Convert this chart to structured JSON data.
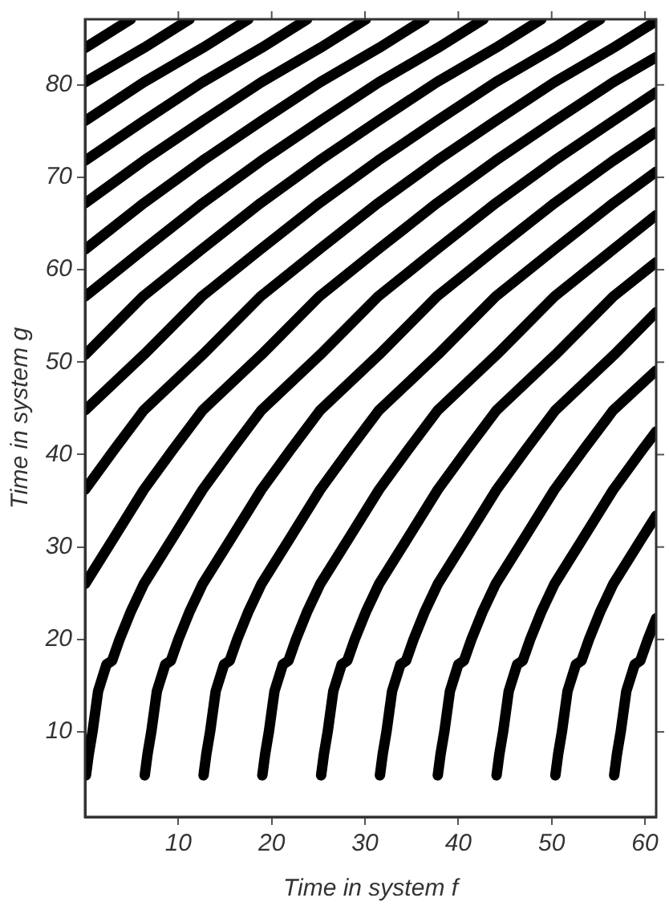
{
  "chart_data": {
    "type": "line",
    "xlabel": "Time in system f",
    "ylabel": "Time in system g",
    "xlim": [
      0,
      61.2
    ],
    "ylim": [
      0.8,
      87.1
    ],
    "xticks": [
      10,
      20,
      30,
      40,
      50,
      60
    ],
    "yticks": [
      10,
      20,
      30,
      40,
      50,
      60,
      70,
      80
    ],
    "grid": false,
    "legend": false,
    "marker": "none",
    "line_style": "solid",
    "series": [
      {
        "color": "#000000",
        "x": [
          0,
          4.9
        ],
        "values": [
          84,
          87.1
        ]
      },
      {
        "color": "#000000",
        "x": [
          0,
          6.3,
          11.2
        ],
        "values": [
          80.3,
          84,
          87.1
        ]
      },
      {
        "color": "#000000",
        "x": [
          0,
          6.3,
          12.6,
          17.5
        ],
        "values": [
          76.1,
          80.3,
          84,
          87.1
        ]
      },
      {
        "color": "#000000",
        "x": [
          0,
          6.3,
          12.6,
          18.9,
          23.8
        ],
        "values": [
          71.8,
          76.1,
          80.3,
          84,
          87.1
        ]
      },
      {
        "color": "#000000",
        "x": [
          0,
          6.3,
          12.6,
          18.9,
          25.2,
          30.1
        ],
        "values": [
          67.2,
          71.8,
          76.1,
          80.3,
          84,
          87.1
        ]
      },
      {
        "color": "#000000",
        "x": [
          0,
          6.3,
          12.6,
          18.9,
          25.2,
          31.5,
          36.4
        ],
        "values": [
          62.2,
          67.2,
          71.8,
          76.1,
          80.3,
          84,
          87.1
        ]
      },
      {
        "color": "#000000",
        "x": [
          0,
          6.3,
          12.6,
          18.9,
          25.2,
          31.5,
          37.8,
          42.7
        ],
        "values": [
          57.1,
          62.2,
          67.2,
          71.8,
          76.1,
          80.3,
          84,
          87.1
        ]
      },
      {
        "color": "#000000",
        "x": [
          0,
          6.2,
          12.5,
          18.8,
          25.1,
          31.4,
          37.7,
          44,
          48.9
        ],
        "values": [
          50.8,
          57.1,
          62.2,
          67.2,
          71.8,
          76.1,
          80.3,
          84,
          87.1
        ]
      },
      {
        "color": "#000000",
        "x": [
          0,
          6.3,
          12.5,
          18.8,
          25.1,
          31.4,
          37.7,
          44,
          50.3,
          55.2
        ],
        "values": [
          44.8,
          50.8,
          57.1,
          62.2,
          67.2,
          71.8,
          76.1,
          80.3,
          84,
          87.1
        ]
      },
      {
        "color": "#000000",
        "x": [
          0,
          3.1,
          6.3,
          12.6,
          18.8,
          25.1,
          31.4,
          37.7,
          44,
          50.3,
          56.6,
          61.2
        ],
        "values": [
          36.2,
          40.5,
          44.8,
          50.8,
          57.1,
          62.2,
          67.2,
          71.8,
          76.1,
          80.3,
          84,
          86.9
        ]
      },
      {
        "color": "#000000",
        "x": [
          0,
          3.1,
          6.3,
          9.4,
          12.6,
          18.9,
          25.1,
          31.4,
          37.7,
          44,
          50.3,
          56.6,
          61.2
        ],
        "values": [
          26,
          31,
          36.2,
          40.5,
          44.8,
          50.8,
          57.1,
          62.2,
          67.2,
          71.8,
          76.1,
          80.3,
          83
        ]
      },
      {
        "color": "#000000",
        "x": [
          0.1,
          0.4,
          0.8,
          1.4,
          2.3,
          2.9,
          3.7,
          4.9,
          6.3,
          9.4,
          12.6,
          15.7,
          18.9,
          25.2,
          31.4,
          37.7,
          44,
          50.3,
          56.6,
          61.2
        ],
        "values": [
          5.3,
          7.6,
          10,
          14.4,
          17.3,
          17.7,
          20,
          23,
          26,
          31,
          36.2,
          40.5,
          44.8,
          50.8,
          57.1,
          62.2,
          67.2,
          71.8,
          76.1,
          79.2
        ]
      },
      {
        "color": "#000000",
        "x": [
          6.4,
          6.7,
          7.1,
          7.7,
          8.6,
          9.2,
          10,
          11.2,
          12.6,
          15.7,
          18.9,
          22,
          25.2,
          31.5,
          37.7,
          44,
          50.3,
          56.6,
          61.2
        ],
        "values": [
          5.3,
          7.6,
          10,
          14.4,
          17.3,
          17.7,
          20,
          23,
          26,
          31,
          36.2,
          40.5,
          44.8,
          50.8,
          57.1,
          62.2,
          67.2,
          71.8,
          74.9
        ]
      },
      {
        "color": "#000000",
        "x": [
          12.7,
          13,
          13.4,
          14,
          14.9,
          15.5,
          16.3,
          17.5,
          18.9,
          22,
          25.2,
          28.3,
          31.5,
          37.8,
          44,
          50.3,
          56.6,
          61.2
        ],
        "values": [
          5.3,
          7.6,
          10,
          14.4,
          17.3,
          17.7,
          20,
          23,
          26,
          31,
          36.2,
          40.5,
          44.8,
          50.8,
          57.1,
          62.2,
          67.2,
          70.6
        ]
      },
      {
        "color": "#000000",
        "x": [
          19,
          19.3,
          19.7,
          20.3,
          21.2,
          21.8,
          22.6,
          23.8,
          25.2,
          28.3,
          31.5,
          34.6,
          37.8,
          44.1,
          50.3,
          56.6,
          61.2
        ],
        "values": [
          5.3,
          7.6,
          10,
          14.4,
          17.3,
          17.7,
          20,
          23,
          26,
          31,
          36.2,
          40.5,
          44.8,
          50.8,
          57.1,
          62.2,
          65.9
        ]
      },
      {
        "color": "#000000",
        "x": [
          25.3,
          25.6,
          26,
          26.6,
          27.5,
          28.1,
          28.9,
          30.1,
          31.5,
          34.6,
          37.8,
          40.9,
          44.1,
          50.4,
          56.6,
          61.2
        ],
        "values": [
          5.3,
          7.6,
          10,
          14.4,
          17.3,
          17.7,
          20,
          23,
          26,
          31,
          36.2,
          40.5,
          44.8,
          50.8,
          57.1,
          60.8
        ]
      },
      {
        "color": "#000000",
        "x": [
          31.6,
          31.9,
          32.3,
          32.9,
          33.8,
          34.4,
          35.2,
          36.4,
          37.8,
          40.9,
          44.1,
          47.2,
          50.4,
          56.7,
          61.2
        ],
        "values": [
          5.3,
          7.6,
          10,
          14.4,
          17.3,
          17.7,
          20,
          23,
          26,
          31,
          36.2,
          40.5,
          44.8,
          50.8,
          55.4
        ]
      },
      {
        "color": "#000000",
        "x": [
          37.8,
          38.1,
          38.5,
          39.1,
          40,
          40.6,
          41.4,
          42.6,
          44,
          47.1,
          50.3,
          53.4,
          56.6,
          61.2
        ],
        "values": [
          5.3,
          7.6,
          10,
          14.4,
          17.3,
          17.7,
          20,
          23,
          26,
          31,
          36.2,
          40.5,
          44.8,
          49.1
        ]
      },
      {
        "color": "#000000",
        "x": [
          44.1,
          44.4,
          44.8,
          45.4,
          46.3,
          46.9,
          47.7,
          48.9,
          50.3,
          53.4,
          56.6,
          59.7,
          61.2
        ],
        "values": [
          5.3,
          7.6,
          10,
          14.4,
          17.3,
          17.7,
          20,
          23,
          26,
          31,
          36.2,
          40.5,
          42.5
        ]
      },
      {
        "color": "#000000",
        "x": [
          50.4,
          50.7,
          51.1,
          51.7,
          52.6,
          53.2,
          54,
          55.2,
          56.6,
          59.7,
          61.2
        ],
        "values": [
          5.3,
          7.6,
          10,
          14.4,
          17.3,
          17.7,
          20,
          23,
          26,
          31,
          33.4
        ]
      },
      {
        "color": "#000000",
        "x": [
          56.7,
          57,
          57.4,
          58,
          58.9,
          59.5,
          60.3,
          61.2
        ],
        "values": [
          5.3,
          7.6,
          10,
          14.4,
          17.3,
          17.7,
          20,
          22.3
        ]
      }
    ]
  }
}
